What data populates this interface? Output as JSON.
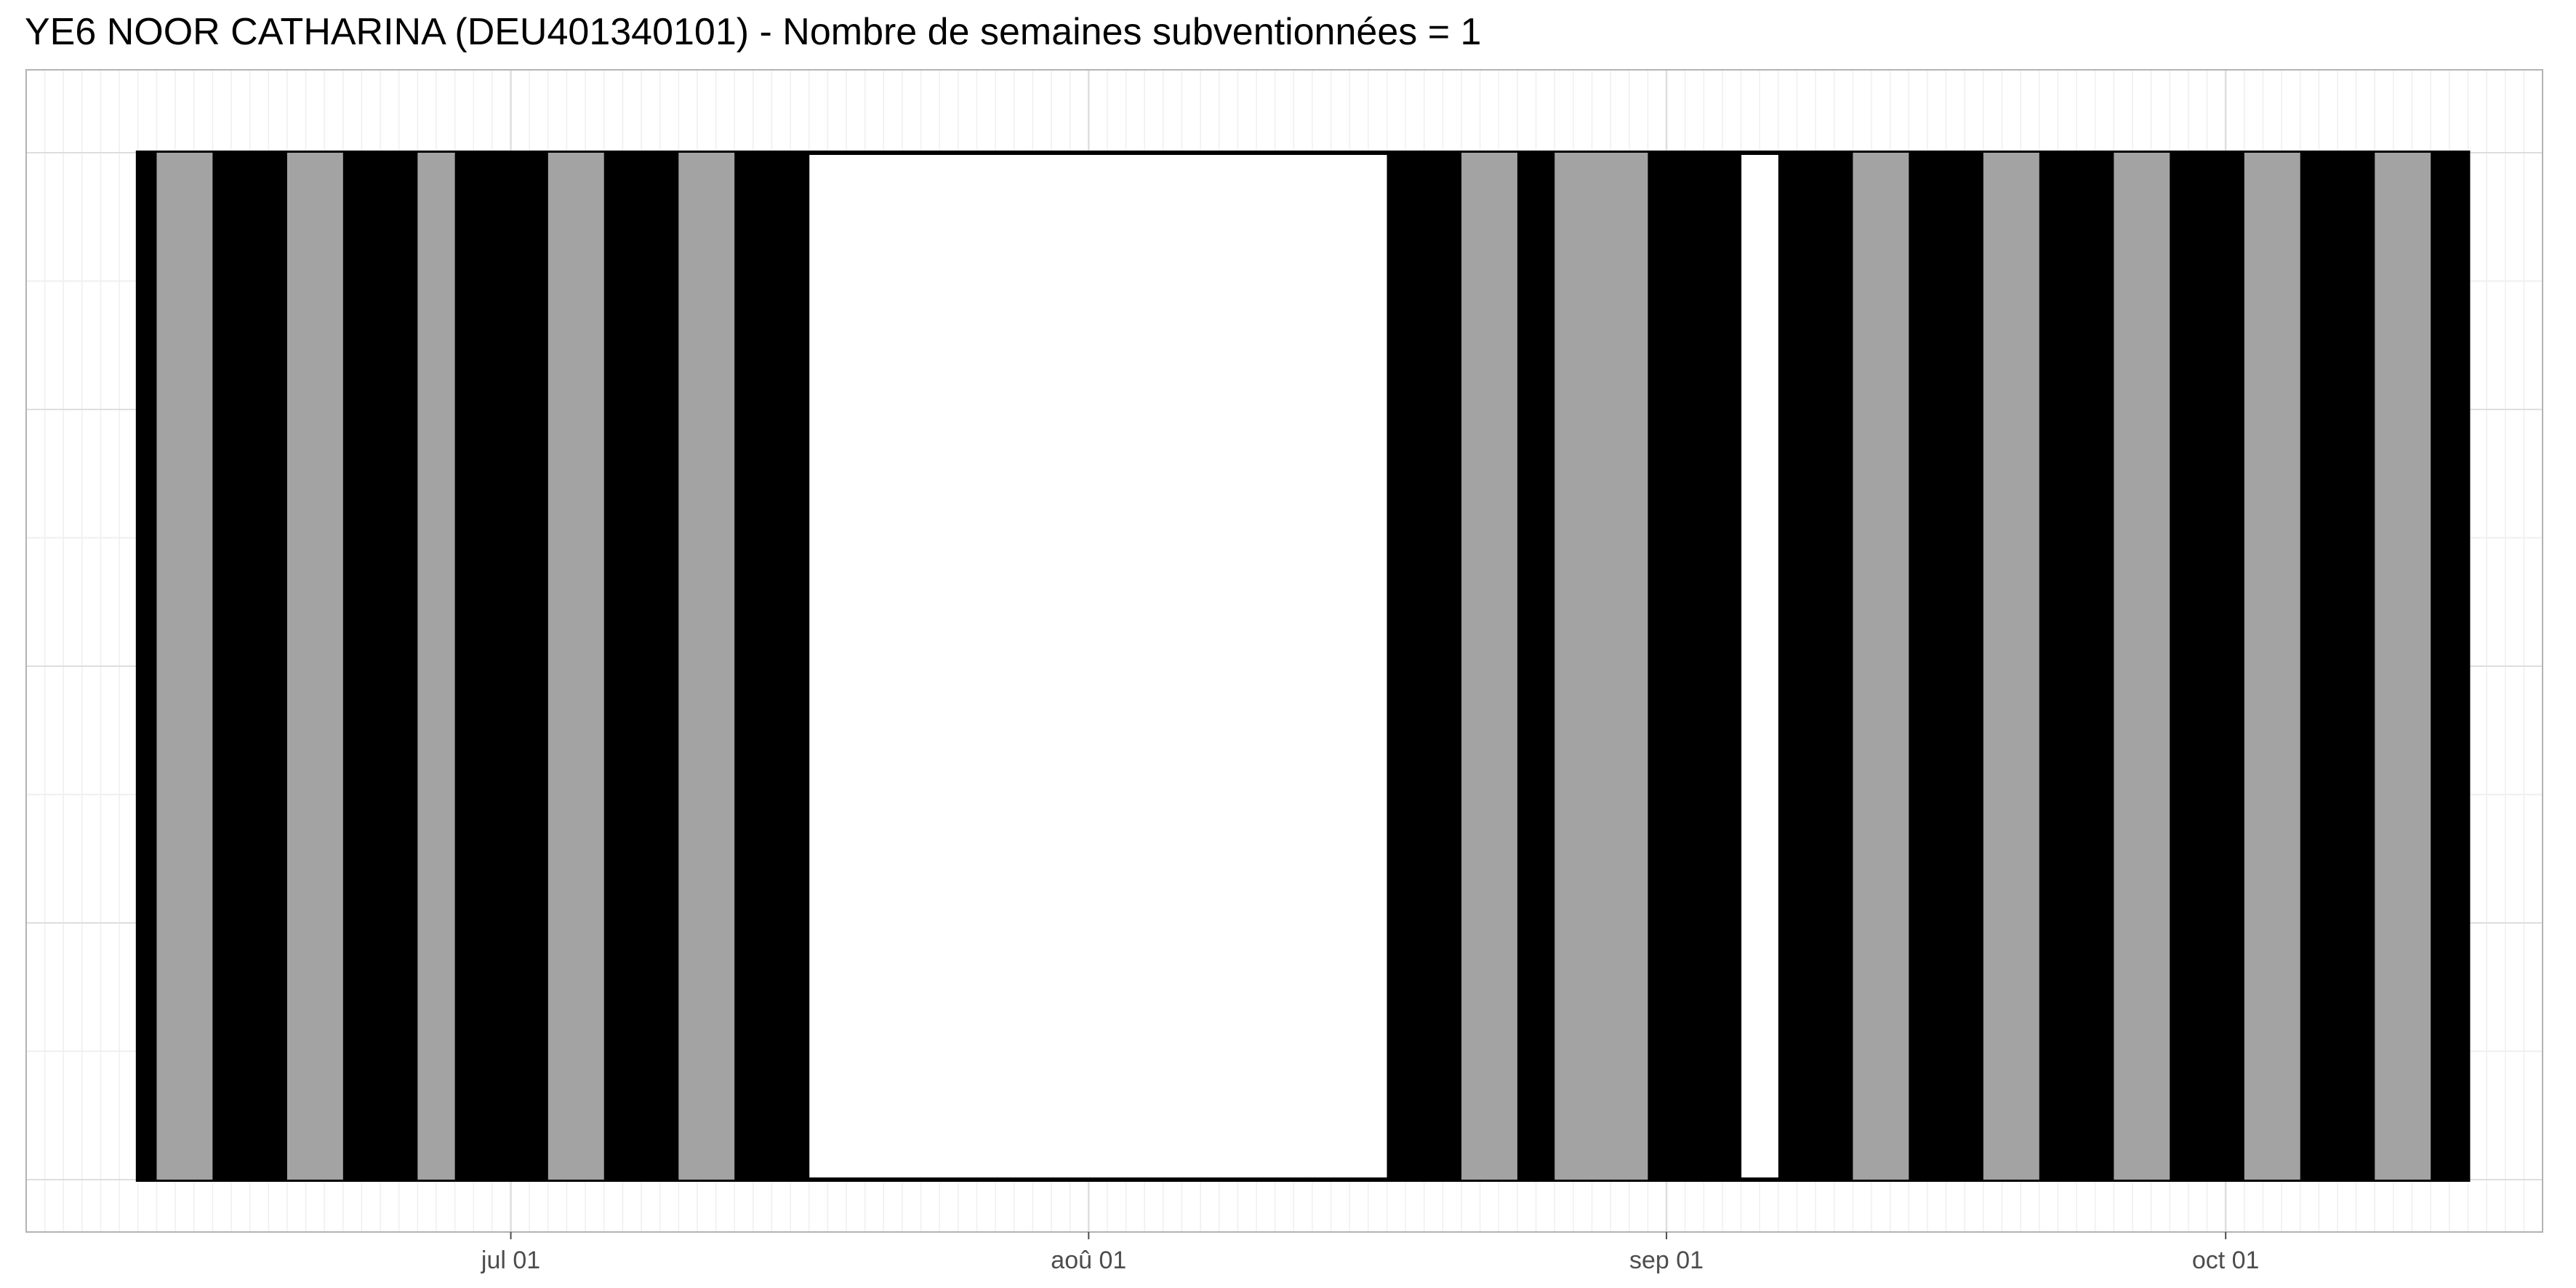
{
  "chart_data": {
    "type": "timeline",
    "title": "YE6 NOOR CATHARINA (DEU401340101) - Nombre de semaines subventionnées = 1",
    "x_axis": {
      "type": "date",
      "range": [
        "2021-06-05",
        "2021-10-18"
      ],
      "ticks": [
        {
          "date": "2021-07-01",
          "label": "jul 01"
        },
        {
          "date": "2021-08-01",
          "label": "aoû 01"
        },
        {
          "date": "2021-09-01",
          "label": "sep 01"
        },
        {
          "date": "2021-10-01",
          "label": "oct 01"
        }
      ],
      "minor_grid": "daily"
    },
    "y_axis": {
      "visible": false
    },
    "grid": true,
    "legend": "none",
    "outline": {
      "start": "2021-06-11",
      "end": "2021-10-14"
    },
    "spans": [
      {
        "start": "2021-06-11",
        "end": "2021-06-12",
        "fill": "black"
      },
      {
        "start": "2021-06-12",
        "end": "2021-06-15",
        "fill": "grey"
      },
      {
        "start": "2021-06-15",
        "end": "2021-06-19",
        "fill": "black"
      },
      {
        "start": "2021-06-19",
        "end": "2021-06-22",
        "fill": "grey"
      },
      {
        "start": "2021-06-22",
        "end": "2021-06-26",
        "fill": "black"
      },
      {
        "start": "2021-06-26",
        "end": "2021-06-28",
        "fill": "grey"
      },
      {
        "start": "2021-06-28",
        "end": "2021-07-03",
        "fill": "black"
      },
      {
        "start": "2021-07-03",
        "end": "2021-07-06",
        "fill": "grey"
      },
      {
        "start": "2021-07-06",
        "end": "2021-07-10",
        "fill": "black"
      },
      {
        "start": "2021-07-10",
        "end": "2021-07-13",
        "fill": "grey"
      },
      {
        "start": "2021-07-13",
        "end": "2021-07-17",
        "fill": "black"
      },
      {
        "start": "2021-08-17",
        "end": "2021-08-21",
        "fill": "black"
      },
      {
        "start": "2021-08-21",
        "end": "2021-08-24",
        "fill": "grey"
      },
      {
        "start": "2021-08-24",
        "end": "2021-08-26",
        "fill": "black"
      },
      {
        "start": "2021-08-26",
        "end": "2021-08-31",
        "fill": "grey"
      },
      {
        "start": "2021-08-31",
        "end": "2021-09-05",
        "fill": "black"
      },
      {
        "start": "2021-09-07",
        "end": "2021-09-11",
        "fill": "black"
      },
      {
        "start": "2021-09-11",
        "end": "2021-09-14",
        "fill": "grey"
      },
      {
        "start": "2021-09-14",
        "end": "2021-09-18",
        "fill": "black"
      },
      {
        "start": "2021-09-18",
        "end": "2021-09-21",
        "fill": "grey"
      },
      {
        "start": "2021-09-21",
        "end": "2021-09-25",
        "fill": "black"
      },
      {
        "start": "2021-09-25",
        "end": "2021-09-28",
        "fill": "grey"
      },
      {
        "start": "2021-09-28",
        "end": "2021-10-02",
        "fill": "black"
      },
      {
        "start": "2021-10-02",
        "end": "2021-10-05",
        "fill": "grey"
      },
      {
        "start": "2021-10-05",
        "end": "2021-10-09",
        "fill": "black"
      },
      {
        "start": "2021-10-09",
        "end": "2021-10-12",
        "fill": "grey"
      },
      {
        "start": "2021-10-12",
        "end": "2021-10-14",
        "fill": "black"
      }
    ],
    "colors": {
      "black": "#000000",
      "grey": "#a3a3a3",
      "grid_major": "#dedede",
      "grid_minor": "#efefef",
      "panel_border": "#b3b3b3",
      "tick_text": "#4d4d4d"
    }
  }
}
